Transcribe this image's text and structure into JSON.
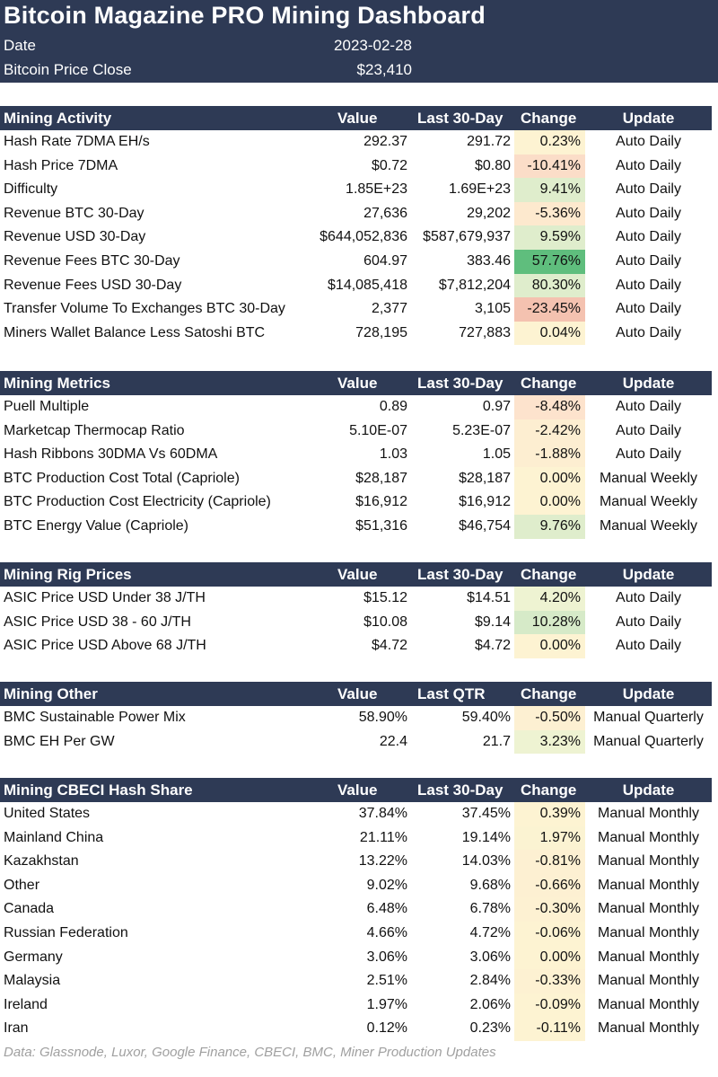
{
  "title": "Bitcoin Magazine PRO Mining Dashboard",
  "date_label": "Date",
  "date_value": "2023-02-28",
  "price_label": "Bitcoin Price Close",
  "price_value": "$23,410",
  "sections": [
    {
      "header": [
        "Mining Activity",
        "Value",
        "Last 30-Day",
        "Change",
        "Update"
      ],
      "rows": [
        [
          "Hash Rate 7DMA EH/s",
          "292.37",
          "291.72",
          "0.23%",
          "Auto Daily",
          "#fdf3d2"
        ],
        [
          "Hash Price 7DMA",
          "$0.72",
          "$0.80",
          "-10.41%",
          "Auto Daily",
          "#fbddc8"
        ],
        [
          "Difficulty",
          "1.85E+23",
          "1.69E+23",
          "9.41%",
          "Auto Daily",
          "#dfedcc"
        ],
        [
          "Revenue BTC 30-Day",
          "27,636",
          "29,202",
          "-5.36%",
          "Auto Daily",
          "#fde9ce"
        ],
        [
          "Revenue USD 30-Day",
          "$644,052,836",
          "$587,679,937",
          "9.59%",
          "Auto Daily",
          "#dfedcc"
        ],
        [
          "Revenue Fees BTC 30-Day",
          "604.97",
          "383.46",
          "57.76%",
          "Auto Daily",
          "#5fbe7d"
        ],
        [
          "Revenue Fees USD 30-Day",
          "$14,085,418",
          "$7,812,204",
          "80.30%",
          "Auto Daily",
          "#dfedcc"
        ],
        [
          "Transfer Volume To Exchanges BTC 30-Day",
          "2,377",
          "3,105",
          "-23.45%",
          "Auto Daily",
          "#f4c2b0"
        ],
        [
          "Miners Wallet Balance Less Satoshi BTC",
          "728,195",
          "727,883",
          "0.04%",
          "Auto Daily",
          "#fdf3d2"
        ]
      ]
    },
    {
      "header": [
        "Mining Metrics",
        "Value",
        "Last 30-Day",
        "Change",
        "Update"
      ],
      "rows": [
        [
          "Puell Multiple",
          "0.89",
          "0.97",
          "-8.48%",
          "Auto Daily",
          "#fde3cd"
        ],
        [
          "Marketcap Thermocap Ratio",
          "5.10E-07",
          "5.23E-07",
          "-2.42%",
          "Auto Daily",
          "#fdeed1"
        ],
        [
          "Hash Ribbons 30DMA Vs 60DMA",
          "1.03",
          "1.05",
          "-1.88%",
          "Auto Daily",
          "#fdeed1"
        ],
        [
          "BTC Production Cost Total (Capriole)",
          "$28,187",
          "$28,187",
          "0.00%",
          "Manual Weekly",
          "#fdf3d2"
        ],
        [
          "BTC Production Cost Electricity (Capriole)",
          "$16,912",
          "$16,912",
          "0.00%",
          "Manual Weekly",
          "#fdf3d2"
        ],
        [
          "BTC Energy Value (Capriole)",
          "$51,316",
          "$46,754",
          "9.76%",
          "Manual Weekly",
          "#dfedcc"
        ]
      ]
    },
    {
      "header": [
        "Mining Rig Prices",
        "Value",
        "Last 30-Day",
        "Change",
        "Update"
      ],
      "rows": [
        [
          "ASIC Price USD Under 38 J/TH",
          "$15.12",
          "$14.51",
          "4.20%",
          "Auto Daily",
          "#eef3d2"
        ],
        [
          "ASIC Price USD 38 - 60 J/TH",
          "$10.08",
          "$9.14",
          "10.28%",
          "Auto Daily",
          "#d6eac8"
        ],
        [
          "ASIC Price USD Above 68 J/TH",
          "$4.72",
          "$4.72",
          "0.00%",
          "Auto Daily",
          "#fdf3d2"
        ]
      ]
    },
    {
      "header": [
        "Mining Other",
        "Value",
        "Last QTR",
        "Change",
        "Update"
      ],
      "rows": [
        [
          "BMC Sustainable Power Mix",
          "58.90%",
          "59.40%",
          "-0.50%",
          "Manual Quarterly",
          "#fdf0d2"
        ],
        [
          "BMC EH Per GW",
          "22.4",
          "21.7",
          "3.23%",
          "Manual Quarterly",
          "#eef3d2"
        ]
      ]
    },
    {
      "header": [
        "Mining CBECI Hash Share",
        "Value",
        "Last 30-Day",
        "Change",
        "Update"
      ],
      "rows": [
        [
          "United States",
          "37.84%",
          "37.45%",
          "0.39%",
          "Manual Monthly",
          "#fdf3d2"
        ],
        [
          "Mainland China",
          "21.11%",
          "19.14%",
          "1.97%",
          "Manual Monthly",
          "#fbf3d2"
        ],
        [
          "Kazakhstan",
          "13.22%",
          "14.03%",
          "-0.81%",
          "Manual Monthly",
          "#fdf0d2"
        ],
        [
          "Other",
          "9.02%",
          "9.68%",
          "-0.66%",
          "Manual Monthly",
          "#fdf0d2"
        ],
        [
          "Canada",
          "6.48%",
          "6.78%",
          "-0.30%",
          "Manual Monthly",
          "#fdf1d2"
        ],
        [
          "Russian Federation",
          "4.66%",
          "4.72%",
          "-0.06%",
          "Manual Monthly",
          "#fdf3d2"
        ],
        [
          "Germany",
          "3.06%",
          "3.06%",
          "0.00%",
          "Manual Monthly",
          "#fdf3d2"
        ],
        [
          "Malaysia",
          "2.51%",
          "2.84%",
          "-0.33%",
          "Manual Monthly",
          "#fdf1d2"
        ],
        [
          "Ireland",
          "1.97%",
          "2.06%",
          "-0.09%",
          "Manual Monthly",
          "#fdf3d2"
        ],
        [
          "Iran",
          "0.12%",
          "0.23%",
          "-0.11%",
          "Manual Monthly",
          "#fdf3d2"
        ]
      ]
    }
  ],
  "footer": "Data: Glassnode, Luxor, Google Finance, CBECI, BMC, Miner Production Updates"
}
